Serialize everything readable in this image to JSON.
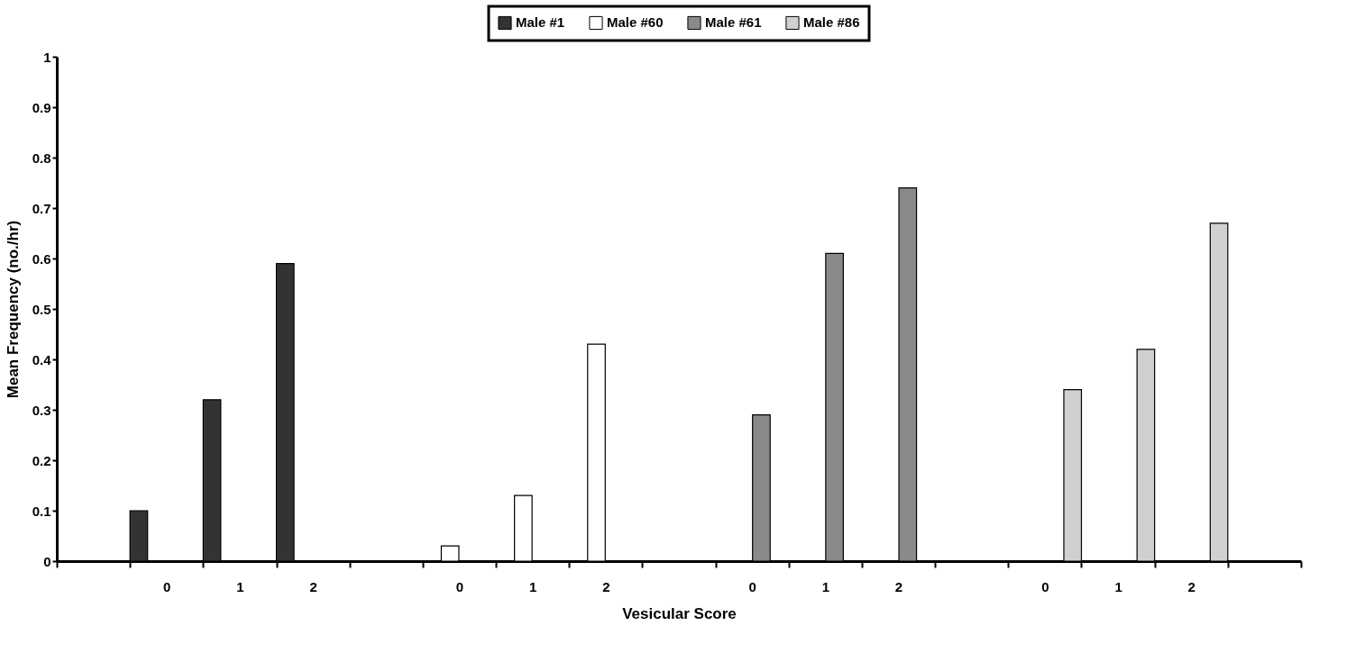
{
  "chart_data": {
    "type": "bar",
    "xlabel": "Vesicular Score",
    "ylabel": "Mean Frequency (no./hr)",
    "categories": [
      null,
      "0",
      "1",
      "2",
      null,
      "0",
      "1",
      "2",
      null,
      "0",
      "1",
      "2",
      null,
      "0",
      "1",
      "2",
      null
    ],
    "series": [
      {
        "name": "Male #1",
        "color": "#333333",
        "values": [
          null,
          0.1,
          0.32,
          0.59,
          null,
          null,
          null,
          null,
          null,
          null,
          null,
          null,
          null,
          null,
          null,
          null,
          null
        ]
      },
      {
        "name": "Male #60",
        "color": "#ffffff",
        "values": [
          null,
          null,
          null,
          null,
          null,
          0.03,
          0.13,
          0.43,
          null,
          null,
          null,
          null,
          null,
          null,
          null,
          null,
          null
        ]
      },
      {
        "name": "Male #61",
        "color": "#8a8a8a",
        "values": [
          null,
          null,
          null,
          null,
          null,
          null,
          null,
          null,
          null,
          0.29,
          0.61,
          0.74,
          null,
          null,
          null,
          null,
          null
        ]
      },
      {
        "name": "Male #86",
        "color": "#d0d0d0",
        "values": [
          null,
          null,
          null,
          null,
          null,
          null,
          null,
          null,
          null,
          null,
          null,
          null,
          null,
          0.34,
          0.42,
          0.67,
          null
        ]
      }
    ],
    "ylim": [
      0,
      1
    ],
    "yticks": [
      0,
      0.1,
      0.2,
      0.3,
      0.4,
      0.5,
      0.6,
      0.7,
      0.8,
      0.9,
      1
    ],
    "grid": false,
    "legend": "top"
  }
}
